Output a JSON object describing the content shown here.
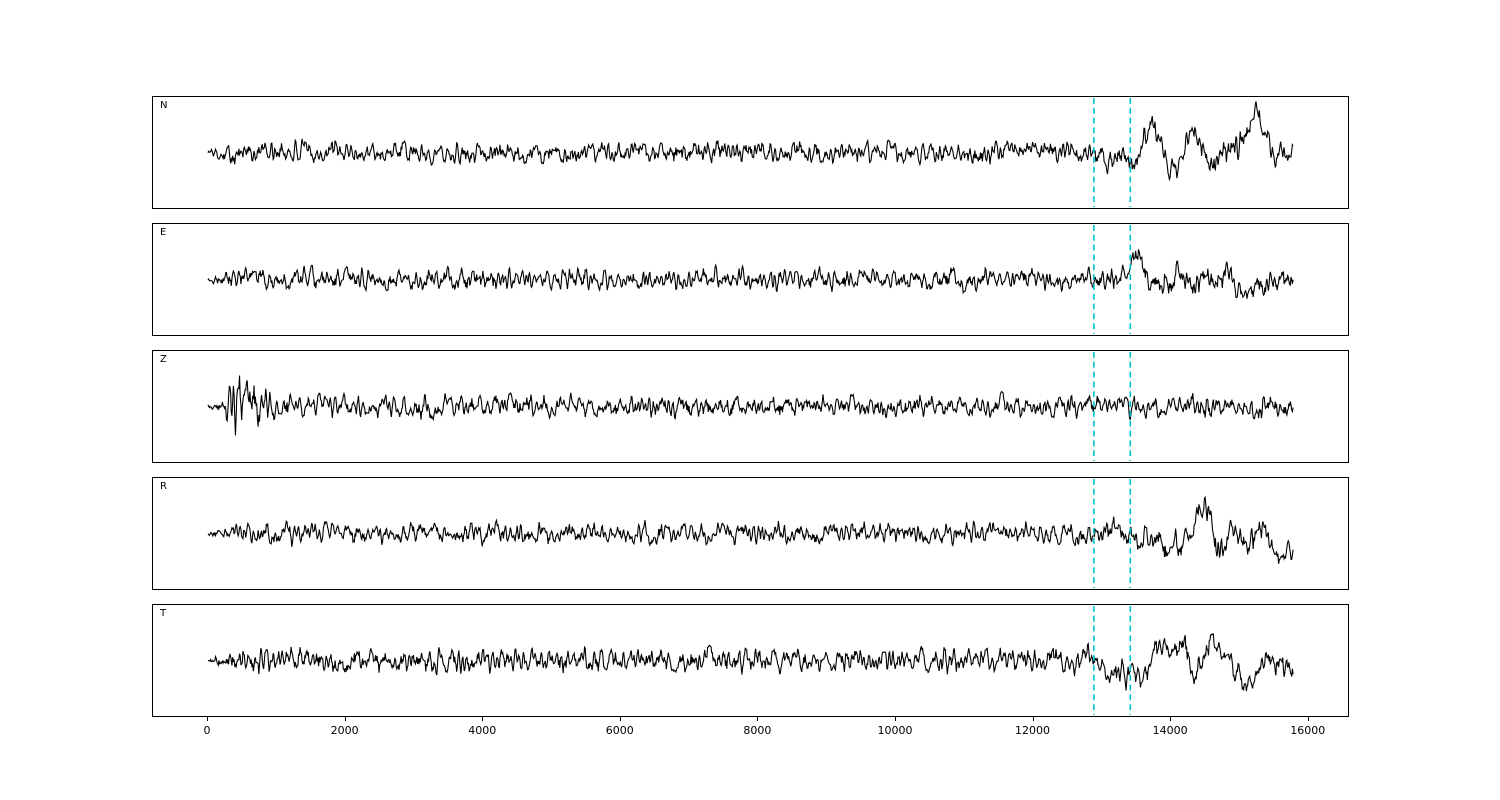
{
  "figure": {
    "background": "#ffffff",
    "frame_color": "#000000"
  },
  "chart_data": {
    "type": "line",
    "title": "",
    "xlabel": "",
    "ylabel": "",
    "x_range": [
      -800,
      16600
    ],
    "x_ticks": [
      0,
      2000,
      4000,
      6000,
      8000,
      10000,
      12000,
      14000,
      16000
    ],
    "x_tick_labels": [
      "0",
      "2000",
      "4000",
      "6000",
      "8000",
      "10000",
      "12000",
      "14000",
      "16000"
    ],
    "trace_x_extent": [
      0,
      15800
    ],
    "n_points": 1580,
    "line_color": "#000000",
    "grid": false,
    "legend": "none",
    "pick_lines": {
      "x": [
        12900,
        13430
      ],
      "color": "#00c2cf",
      "style": "dashed"
    },
    "series": [
      {
        "name": "N",
        "seed": 101,
        "hf_env": [
          [
            0,
            1.2
          ],
          [
            120,
            3
          ],
          [
            350,
            5
          ],
          [
            800,
            5.5
          ],
          [
            3000,
            5
          ],
          [
            8000,
            5.2
          ],
          [
            12800,
            5
          ],
          [
            13600,
            4.5
          ],
          [
            15800,
            4
          ]
        ],
        "lf_env": [
          [
            0,
            0
          ],
          [
            12850,
            0.5
          ],
          [
            13100,
            9
          ],
          [
            13600,
            14
          ],
          [
            14300,
            15
          ],
          [
            15000,
            16
          ],
          [
            15500,
            13
          ],
          [
            15800,
            11
          ]
        ]
      },
      {
        "name": "E",
        "seed": 202,
        "hf_env": [
          [
            0,
            1.2
          ],
          [
            150,
            3.5
          ],
          [
            400,
            5
          ],
          [
            1000,
            5.2
          ],
          [
            12800,
            5
          ],
          [
            15800,
            4.2
          ]
        ],
        "lf_env": [
          [
            0,
            0
          ],
          [
            12850,
            0.5
          ],
          [
            13150,
            8
          ],
          [
            13800,
            11
          ],
          [
            14800,
            13
          ],
          [
            15400,
            14
          ],
          [
            15800,
            11
          ]
        ]
      },
      {
        "name": "Z",
        "seed": 303,
        "hf_env": [
          [
            0,
            1.5
          ],
          [
            230,
            4
          ],
          [
            330,
            13
          ],
          [
            650,
            14
          ],
          [
            850,
            8
          ],
          [
            1200,
            6
          ],
          [
            2000,
            5.5
          ],
          [
            12000,
            5
          ],
          [
            15800,
            5
          ]
        ],
        "lf_env": [
          [
            0,
            0
          ],
          [
            12900,
            1
          ],
          [
            14000,
            2.5
          ],
          [
            15000,
            5
          ],
          [
            15400,
            8
          ],
          [
            15800,
            7
          ]
        ]
      },
      {
        "name": "R",
        "seed": 404,
        "hf_env": [
          [
            0,
            1.2
          ],
          [
            140,
            3
          ],
          [
            380,
            5
          ],
          [
            900,
            5.3
          ],
          [
            12800,
            5
          ],
          [
            15800,
            4
          ]
        ],
        "lf_env": [
          [
            0,
            0
          ],
          [
            12850,
            0.5
          ],
          [
            13080,
            10
          ],
          [
            13600,
            13
          ],
          [
            14500,
            15
          ],
          [
            15200,
            16
          ],
          [
            15800,
            12
          ]
        ]
      },
      {
        "name": "T",
        "seed": 505,
        "hf_env": [
          [
            0,
            1.5
          ],
          [
            200,
            4
          ],
          [
            500,
            6
          ],
          [
            1200,
            6.2
          ],
          [
            12700,
            5.5
          ],
          [
            15800,
            4.5
          ]
        ],
        "lf_env": [
          [
            0,
            0
          ],
          [
            12700,
            0.5
          ],
          [
            13000,
            7
          ],
          [
            13600,
            11
          ],
          [
            14300,
            13
          ],
          [
            15000,
            12
          ],
          [
            15800,
            10
          ]
        ]
      }
    ],
    "description": "Five-channel seismogram noise traces (N, E, Z, R, T) with two cyan dashed vertical pick lines near x=12900 and x=13430; amplitude increases after the pick window on N, E, R, T. Dense waveform regenerated from per-channel amplitude envelopes (sigma in px)."
  }
}
